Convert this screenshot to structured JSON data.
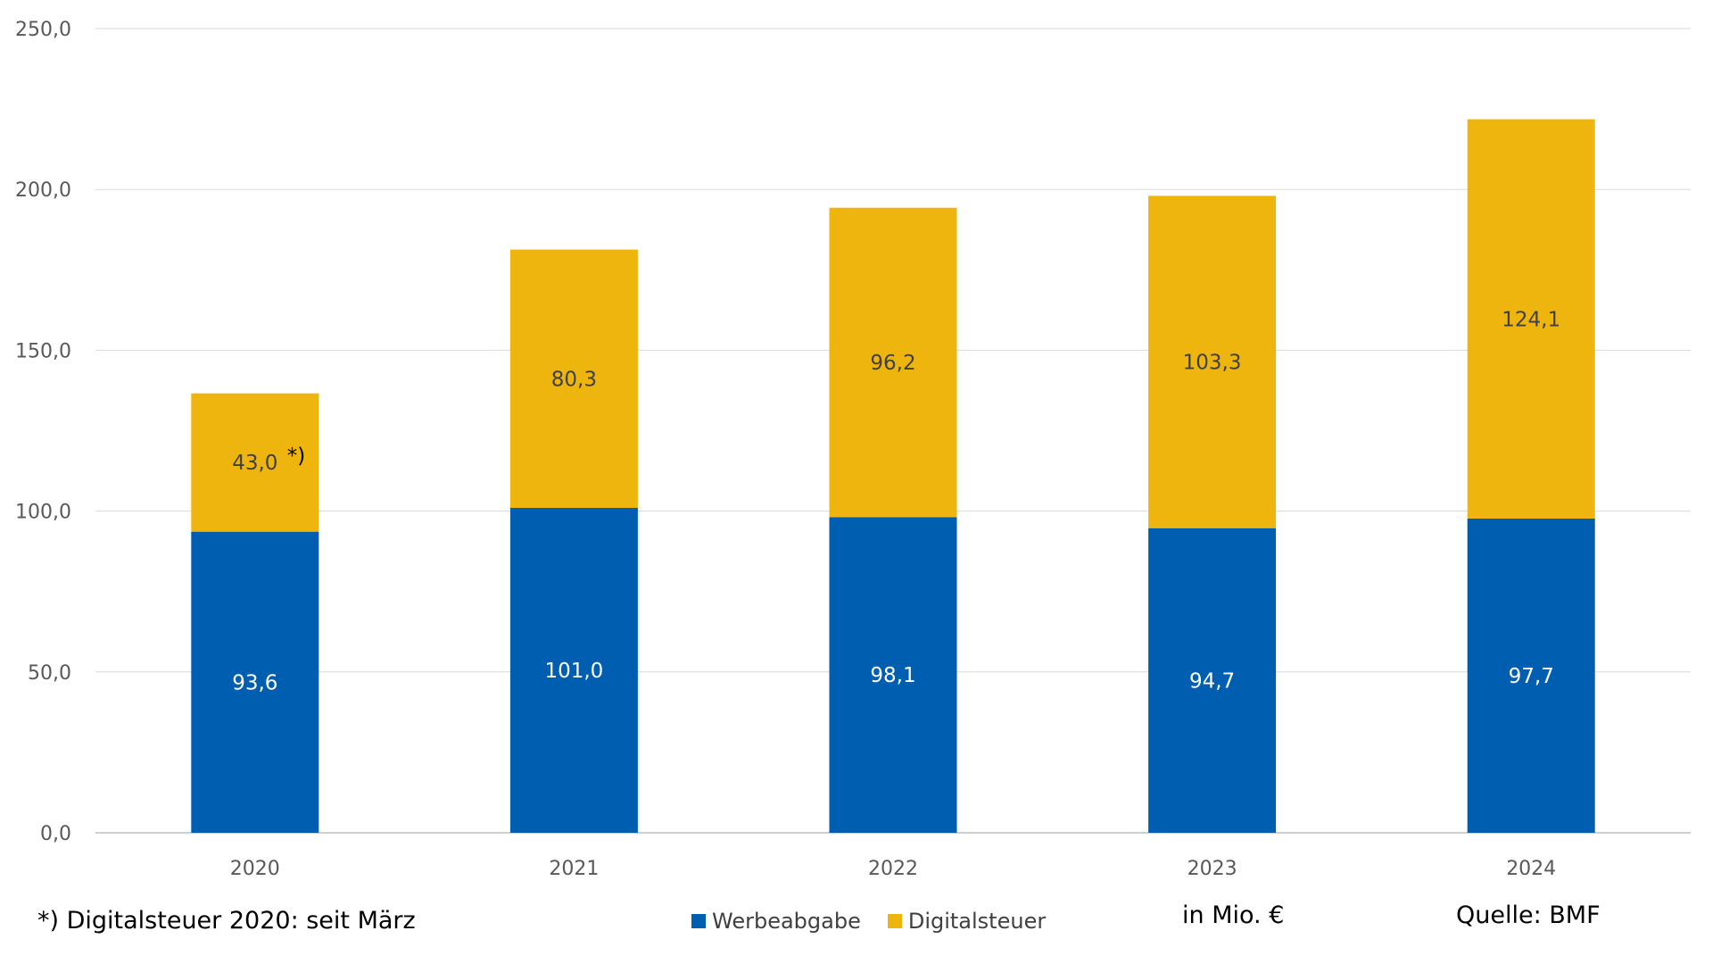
{
  "chart_data": {
    "type": "bar",
    "stacked": true,
    "categories": [
      "2020",
      "2021",
      "2022",
      "2023",
      "2024"
    ],
    "series": [
      {
        "name": "Werbeabgabe",
        "values": [
          93.6,
          101.0,
          98.1,
          94.7,
          97.7
        ],
        "labels": [
          "93,6",
          "101,0",
          "98,1",
          "94,7",
          "97,7"
        ],
        "color": "#005EB0",
        "label_color": "#ffffff"
      },
      {
        "name": "Digitalsteuer",
        "values": [
          43.0,
          80.3,
          96.2,
          103.3,
          124.1
        ],
        "labels": [
          "43,0",
          "80,3",
          "96,2",
          "103,3",
          "124,1"
        ],
        "color": "#EFB50F",
        "label_color": "#404040"
      }
    ],
    "ylim": [
      0,
      250
    ],
    "yticks": [
      0,
      50,
      100,
      150,
      200,
      250
    ],
    "ytick_labels": [
      "0,0",
      "50,0",
      "100,0",
      "150,0",
      "200,0",
      "250,0"
    ],
    "grid": true,
    "legend": "bottom-center",
    "annotation": "*)"
  },
  "footnote": "*) Digitalsteuer 2020: seit März",
  "unit_note": "in Mio. €",
  "source": "Quelle: BMF"
}
